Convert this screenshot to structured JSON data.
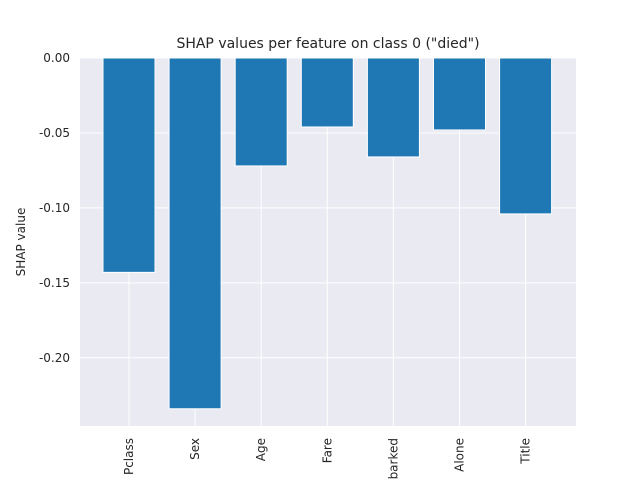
{
  "chart_data": {
    "type": "bar",
    "title": "SHAP values per feature on class 0 (\"died\")",
    "xlabel": "",
    "ylabel": "SHAP value",
    "categories": [
      "Pclass",
      "Sex",
      "Age",
      "Fare",
      "Embarked",
      "Alone",
      "Title"
    ],
    "values": [
      -0.143,
      -0.234,
      -0.072,
      -0.046,
      -0.066,
      -0.048,
      -0.104
    ],
    "ylim": [
      -0.2455,
      0.0
    ],
    "yticks": [
      0.0,
      -0.05,
      -0.1,
      -0.15,
      -0.2
    ],
    "ytick_labels": [
      "0.00",
      "-0.05",
      "-0.10",
      "-0.15",
      "-0.20"
    ],
    "grid": true,
    "colors": {
      "bar": "#1f77b4",
      "plot_background": "#eaeaf2",
      "grid": "#ffffff",
      "text": "#262626"
    }
  }
}
